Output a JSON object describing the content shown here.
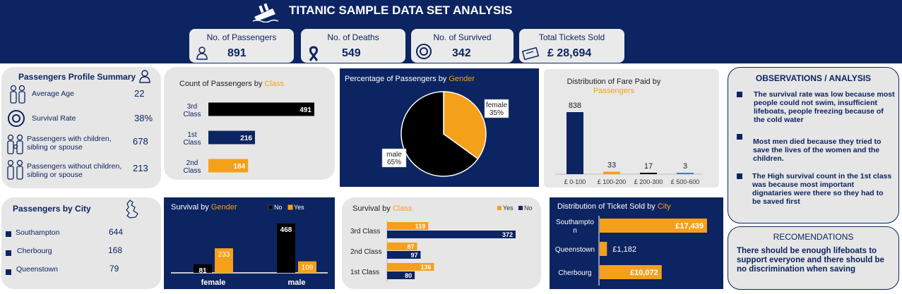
{
  "header": {
    "title": "TITANIC SAMPLE DATA SET ANALYSIS",
    "kpis": [
      {
        "label": "No. of Passengers",
        "value": "891",
        "icon": "person-icon"
      },
      {
        "label": "No. of Deaths",
        "value": "549",
        "icon": "ribbon-icon"
      },
      {
        "label": "No. of Survived",
        "value": "342",
        "icon": "lifebuoy-icon"
      },
      {
        "label": "Total Tickets Sold",
        "value": "£ 28,694",
        "icon": "ticket-icon"
      }
    ]
  },
  "profile": {
    "title": "Passengers Profile Summary",
    "rows": [
      {
        "label": "Average Age",
        "value": "22"
      },
      {
        "label": "Survival Rate",
        "value": "38%"
      },
      {
        "label": "Passengers with children, sibling or spouse",
        "value": "678"
      },
      {
        "label": "Passengers without children, sibling or spouse",
        "value": "213"
      }
    ]
  },
  "city": {
    "title": "Passengers by City",
    "rows": [
      {
        "label": "Southampton",
        "value": "644"
      },
      {
        "label": "Cherbourg",
        "value": "168"
      },
      {
        "label": "Queenstown",
        "value": "79"
      }
    ]
  },
  "observations": {
    "title": "OBSERVATIONS / ANALYSIS",
    "items": [
      "The survival rate was low because most people could not swim, insufficient lifeboats, people freezing because of the cold water",
      "Most men died because they tried to save the lives of the women and the children.",
      "The High survival count in the 1st class was because most important dignataries were there so they had to be saved first"
    ]
  },
  "recommendations": {
    "title": "RECOMENDATIONS",
    "text": "There should be enough lifeboats to support everyone and there should be no discrimination when saving"
  },
  "colors": {
    "navy": "#0c2461",
    "orange": "#f5a01a",
    "black": "#000000"
  },
  "chart_data": [
    {
      "id": "class-count",
      "type": "bar",
      "orientation": "horizontal",
      "title_parts": [
        "Count of Passengers by ",
        "Class"
      ],
      "categories": [
        "3rd Class",
        "1st Class",
        "2nd Class"
      ],
      "values": [
        491,
        216,
        184
      ],
      "colors": [
        "#000000",
        "#0c2461",
        "#f5a01a"
      ]
    },
    {
      "id": "gender-pie",
      "type": "pie",
      "title_parts": [
        "Percentage of Passengers by ",
        "Gender"
      ],
      "slices": [
        {
          "label": "female",
          "value": 35,
          "display": "35%",
          "color": "#f5a01a"
        },
        {
          "label": "male",
          "value": 65,
          "display": "65%",
          "color": "#000000"
        }
      ]
    },
    {
      "id": "fare-dist",
      "type": "bar",
      "title_parts": [
        "Distribution of Fare Paid by ",
        "Passengers"
      ],
      "categories": [
        "£ 0-100",
        "£ 100-200",
        "£ 200-300",
        "£ 500-600"
      ],
      "values": [
        838,
        33,
        17,
        3
      ],
      "colors": [
        "#0c2461",
        "#f5a01a",
        "#000000",
        "#4a78c9"
      ]
    },
    {
      "id": "survival-gender",
      "type": "bar",
      "title_parts": [
        "Survival by ",
        "Gender"
      ],
      "categories": [
        "female",
        "male"
      ],
      "series": [
        {
          "name": "No",
          "values": [
            81,
            468
          ],
          "color": "#000000"
        },
        {
          "name": "Yes",
          "values": [
            233,
            109
          ],
          "color": "#f5a01a"
        }
      ]
    },
    {
      "id": "survival-class",
      "type": "bar",
      "orientation": "horizontal",
      "title_parts": [
        "Survival by ",
        "Class"
      ],
      "categories": [
        "3rd Class",
        "2nd Class",
        "1st Class"
      ],
      "series": [
        {
          "name": "Yes",
          "values": [
            119,
            87,
            136
          ],
          "color": "#f5a01a"
        },
        {
          "name": "No",
          "values": [
            372,
            97,
            80
          ],
          "color": "#0c2461"
        }
      ]
    },
    {
      "id": "ticket-city",
      "type": "bar",
      "orientation": "horizontal",
      "title_parts": [
        "Distribution of Ticket Sold by ",
        "City"
      ],
      "categories": [
        "Southampton",
        "Queenstown",
        "Cherbourg"
      ],
      "values": [
        17439,
        1182,
        10072
      ],
      "labels": [
        "£17,439",
        "£1,182",
        "£10,072"
      ]
    }
  ]
}
